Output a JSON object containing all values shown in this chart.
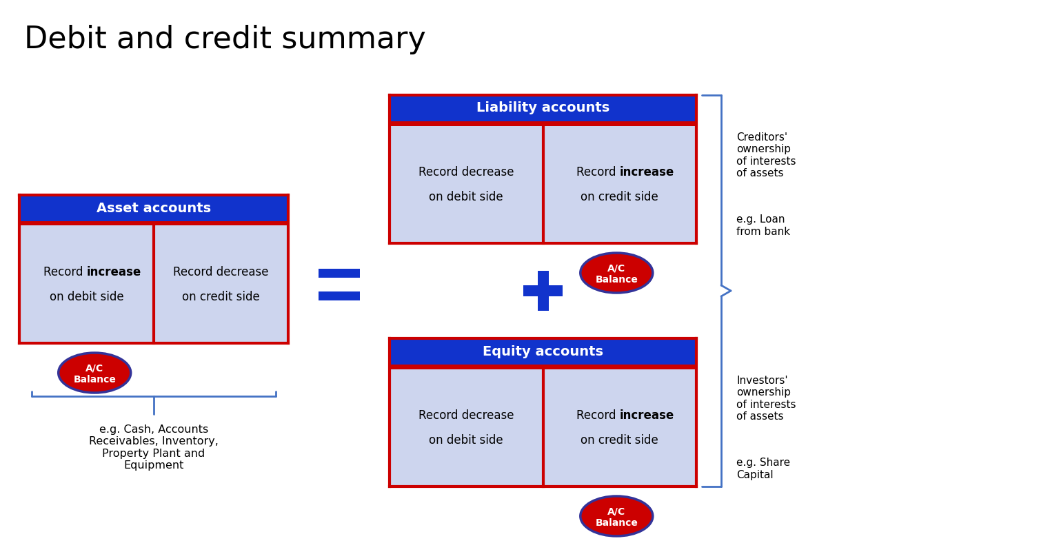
{
  "title": "Debit and credit summary",
  "title_fontsize": 32,
  "title_color": "#000000",
  "bg_color": "#ffffff",
  "blue_header": "#1133cc",
  "red_color": "#cc0000",
  "light_blue_bg": "#cdd5ee",
  "cell_text_color": "#000000",
  "header_text_color": "#ffffff",
  "red_oval_color": "#cc0000",
  "oval_border_color": "#333399",
  "oval_text_color": "#ffffff",
  "blue_symbol_color": "#1133cc",
  "bracket_color": "#4472c4",
  "side_text_color": "#000000",
  "asset_header": "Asset accounts",
  "liability_header": "Liability accounts",
  "equity_header": "Equity accounts",
  "asset_example": "e.g. Cash, Accounts\nReceivables, Inventory,\nProperty Plant and\nEquipment",
  "liability_side_title": "Creditors'\nownership\nof interests\nof assets",
  "liability_side_example": "e.g. Loan\nfrom bank",
  "equity_side_title": "Investors'\nownership\nof interests\nof assets",
  "equity_side_example": "e.g. Share\nCapital"
}
